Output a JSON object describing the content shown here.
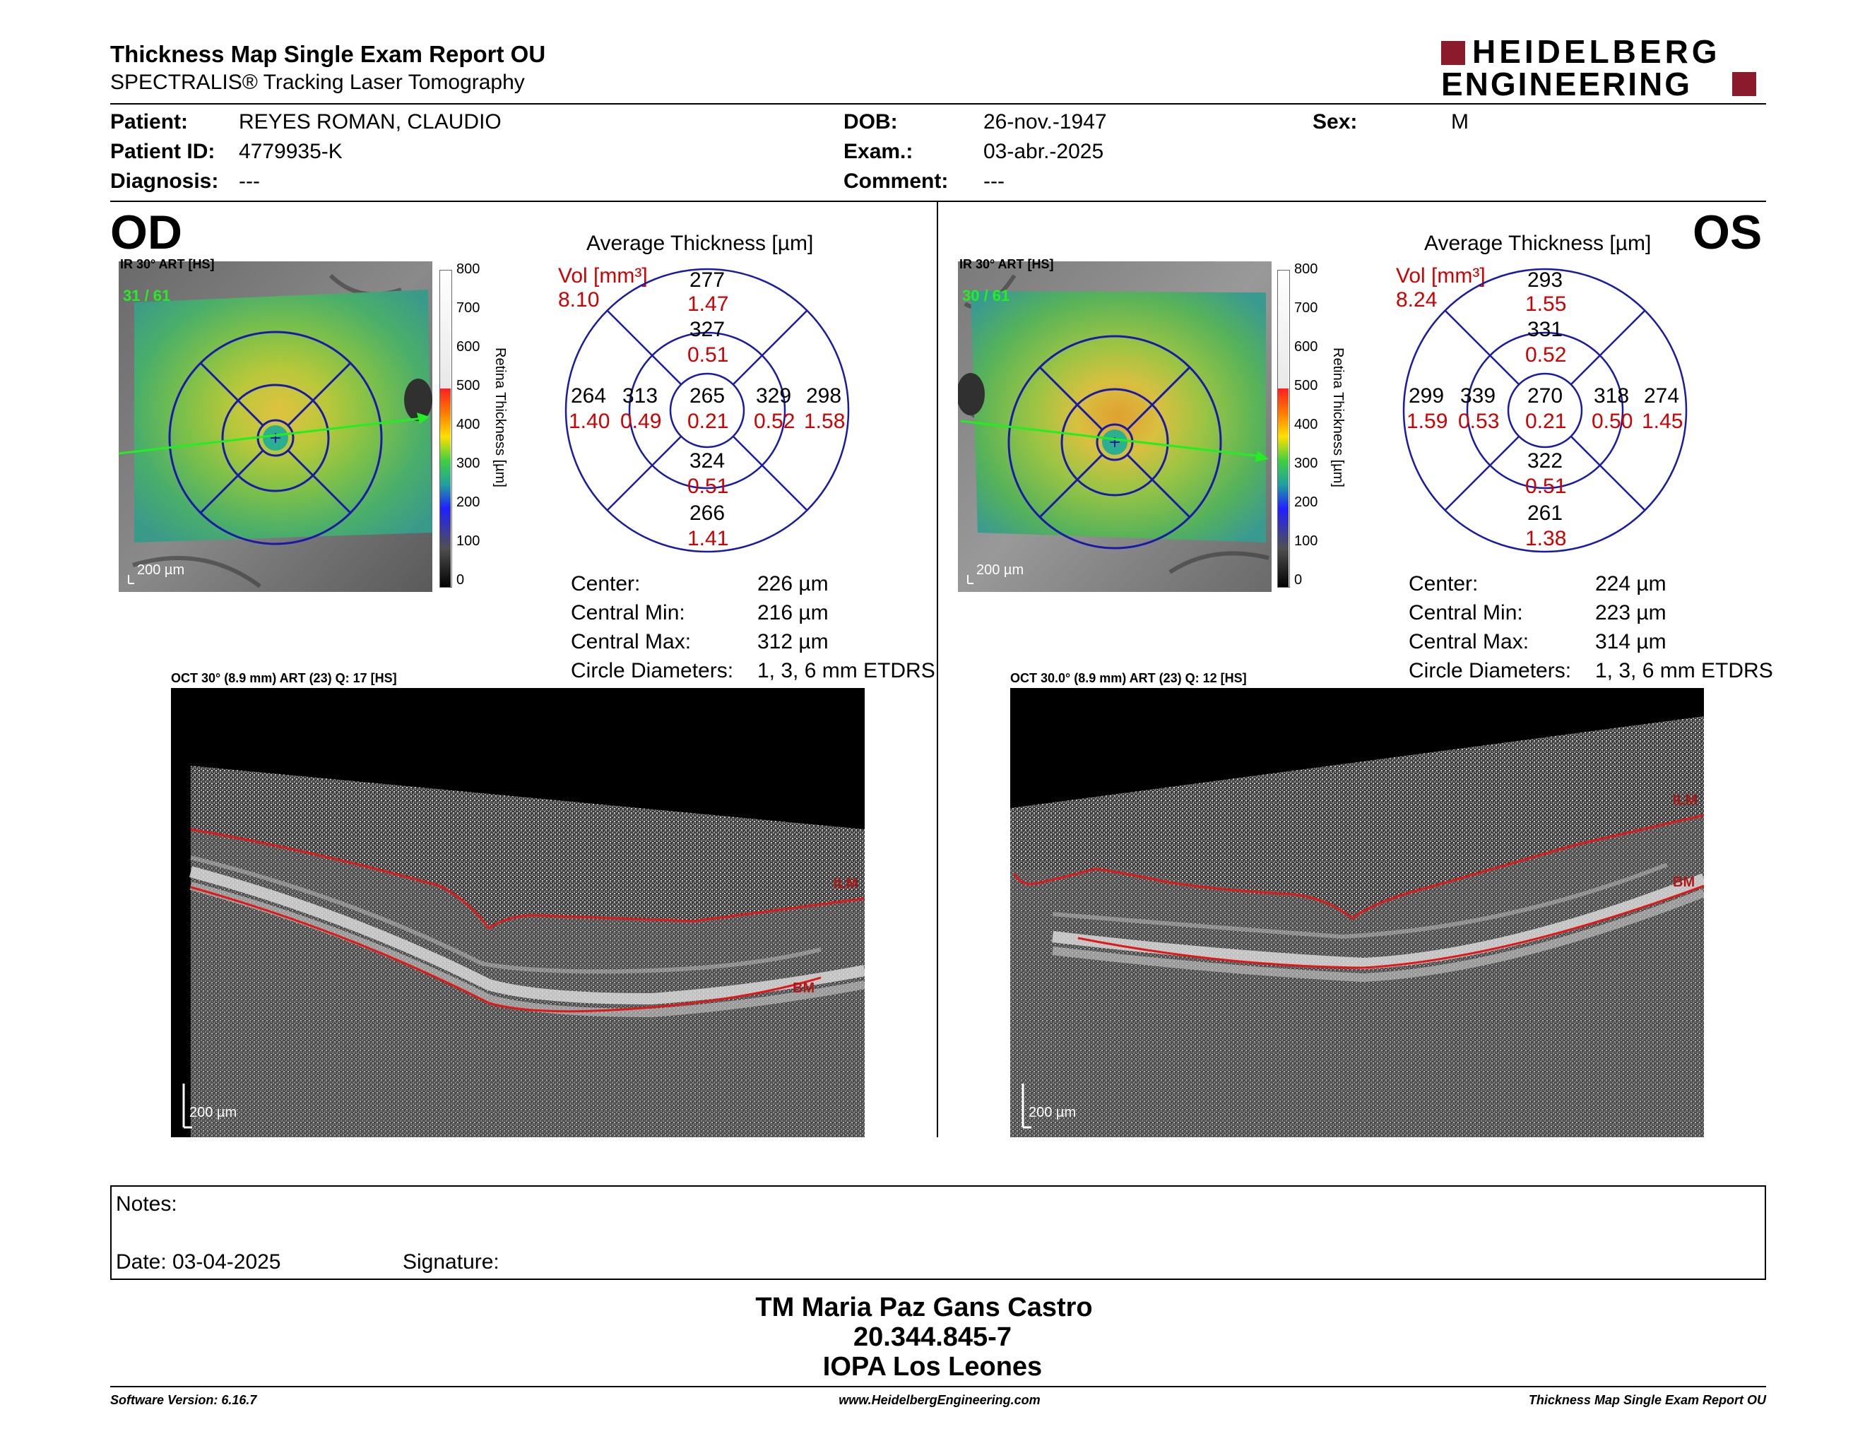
{
  "header": {
    "title": "Thickness Map Single Exam Report OU",
    "subtitle": "SPECTRALIS® Tracking Laser Tomography",
    "logo_line1": "HEIDELBERG",
    "logo_line2": "ENGINEERING"
  },
  "patient": {
    "patient_label": "Patient:",
    "patient_value": "REYES ROMAN, CLAUDIO",
    "id_label": "Patient ID:",
    "id_value": "4779935-K",
    "diagnosis_label": "Diagnosis:",
    "diagnosis_value": "---",
    "dob_label": "DOB:",
    "dob_value": "26-nov.-1947",
    "exam_label": "Exam.:",
    "exam_value": "03-abr.-2025",
    "comment_label": "Comment:",
    "comment_value": "---",
    "sex_label": "Sex:",
    "sex_value": "M"
  },
  "colorbar": {
    "ticks": [
      "800",
      "700",
      "600",
      "500",
      "400",
      "300",
      "200",
      "100",
      "0"
    ],
    "label": "Retina  Thickness [µm]"
  },
  "od": {
    "eye": "OD",
    "ir_label": "IR 30° ART [HS]",
    "frames": "31 / 61",
    "scale": "200 µm",
    "avg_title": "Average Thickness [µm]",
    "vol_label": "Vol [mm³]",
    "vol_value": "8.10",
    "etdrs": {
      "center": "265",
      "center_vol": "0.21",
      "inner_sup": "327",
      "inner_sup_vol": "0.51",
      "inner_inf": "324",
      "inner_inf_vol": "0.51",
      "inner_left": "313",
      "inner_left_vol": "0.49",
      "inner_right": "329",
      "inner_right_vol": "0.52",
      "outer_sup": "277",
      "outer_sup_vol": "1.47",
      "outer_inf": "266",
      "outer_inf_vol": "1.41",
      "outer_left": "264",
      "outer_left_vol": "1.40",
      "outer_right": "298",
      "outer_right_vol": "1.58"
    },
    "stats": [
      {
        "label": "Center:",
        "value": "226 µm"
      },
      {
        "label": "Central Min:",
        "value": "216 µm"
      },
      {
        "label": "Central Max:",
        "value": "312 µm"
      },
      {
        "label": "Circle Diameters:",
        "value": "1, 3, 6 mm ETDRS"
      }
    ],
    "oct_label": "OCT 30° (8.9 mm) ART (23) Q: 17 [HS]",
    "ilm": "ILM",
    "bm": "BM",
    "oct_scale": "200 µm"
  },
  "os": {
    "eye": "OS",
    "ir_label": "IR 30° ART [HS]",
    "frames": "30 / 61",
    "scale": "200 µm",
    "avg_title": "Average Thickness [µm]",
    "vol_label": "Vol [mm³]",
    "vol_value": "8.24",
    "etdrs": {
      "center": "270",
      "center_vol": "0.21",
      "inner_sup": "331",
      "inner_sup_vol": "0.52",
      "inner_inf": "322",
      "inner_inf_vol": "0.51",
      "inner_left": "339",
      "inner_left_vol": "0.53",
      "inner_right": "318",
      "inner_right_vol": "0.50",
      "outer_sup": "293",
      "outer_sup_vol": "1.55",
      "outer_inf": "261",
      "outer_inf_vol": "1.38",
      "outer_left": "299",
      "outer_left_vol": "1.59",
      "outer_right": "274",
      "outer_right_vol": "1.45"
    },
    "stats": [
      {
        "label": "Center:",
        "value": "224 µm"
      },
      {
        "label": "Central Min:",
        "value": "223 µm"
      },
      {
        "label": "Central Max:",
        "value": "314 µm"
      },
      {
        "label": "Circle Diameters:",
        "value": "1, 3, 6 mm ETDRS"
      }
    ],
    "oct_label": "OCT 30.0° (8.9 mm) ART (23) Q: 12 [HS]",
    "ilm": "ILM",
    "bm": "BM",
    "oct_scale": "200 µm"
  },
  "notes": {
    "notes_label": "Notes:",
    "date_label": "Date: 03-04-2025",
    "signature_label": "Signature:"
  },
  "signature": {
    "name": "TM Maria Paz Gans Castro",
    "rut": "20.344.845-7",
    "institution": "IOPA Los Leones"
  },
  "footer": {
    "software": "Software Version: 6.16.7",
    "website": "www.HeidelbergEngineering.com",
    "report": "Thickness Map Single Exam Report OU"
  },
  "colors": {
    "grid_blue": "#1a1aa8",
    "accent_red": "#d00000",
    "logo_red": "#8b1a2b",
    "segment_red": "#d41515"
  }
}
